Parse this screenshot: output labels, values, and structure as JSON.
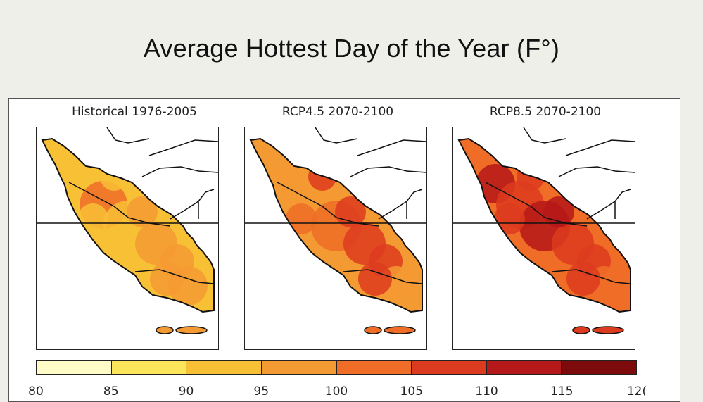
{
  "slide": {
    "title": "Average Hottest Day of the Year  (F°)"
  },
  "panels": [
    {
      "title": "Historical 1976-2005",
      "scenario_level": 0
    },
    {
      "title": "RCP4.5 2070-2100",
      "scenario_level": 1
    },
    {
      "title": "RCP8.5 2070-2100",
      "scenario_level": 2
    }
  ],
  "colorbar": {
    "ticks": [
      "80",
      "85",
      "90",
      "95",
      "100",
      "105",
      "110",
      "115",
      "12("
    ],
    "colors": [
      "#fffcc8",
      "#fbe55a",
      "#f8c035",
      "#f49a33",
      "#ef6d27",
      "#dd3b1f",
      "#b51818",
      "#7e0b0b",
      "#470404"
    ]
  }
}
